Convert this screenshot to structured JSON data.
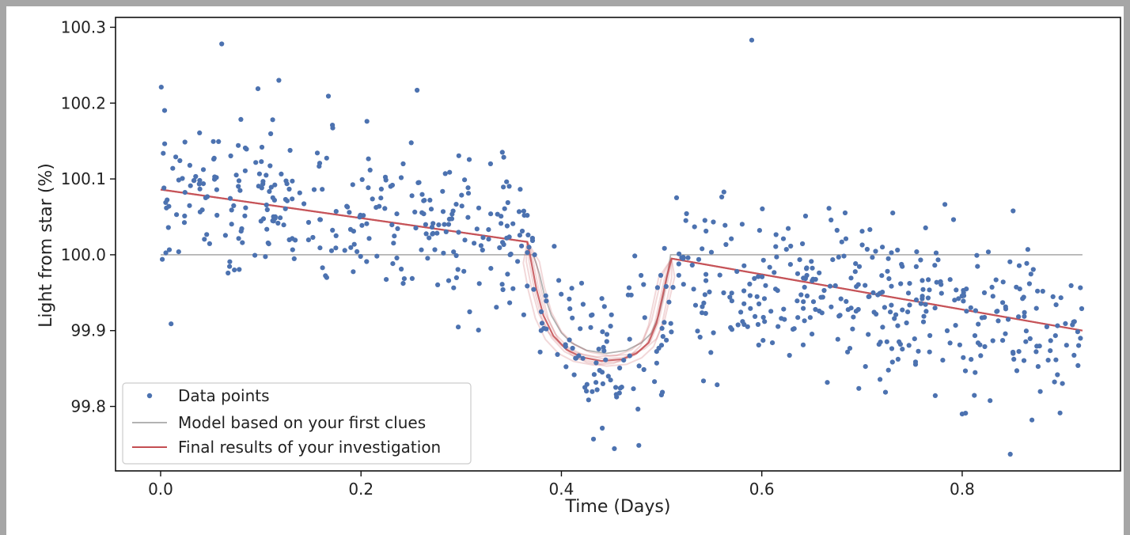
{
  "chart_data": {
    "type": "scatter",
    "title": "",
    "xlabel": "Time (Days)",
    "ylabel": "Light from star (%)",
    "xlim": [
      -0.045,
      0.958
    ],
    "ylim": [
      99.715,
      100.313
    ],
    "xticks": [
      0.0,
      0.2,
      0.4,
      0.6,
      0.8
    ],
    "xtick_labels": [
      "0.0",
      "0.2",
      "0.4",
      "0.6",
      "0.8"
    ],
    "yticks": [
      99.8,
      99.9,
      100.0,
      100.1,
      100.2,
      100.3
    ],
    "ytick_labels": [
      "99.8",
      "99.9",
      "100.0",
      "100.1",
      "100.2",
      "100.3"
    ],
    "grid": false,
    "legend_position": "lower-left",
    "legend": [
      {
        "label": "Data points",
        "kind": "marker",
        "color": "#4c72b0"
      },
      {
        "label": "Model based on your first clues",
        "kind": "line",
        "color": "#b3b3b3"
      },
      {
        "label": "Final results of your investigation",
        "kind": "line",
        "color": "#c44e52"
      }
    ],
    "data_points": {
      "name": "Data points",
      "color": "#4c72b0",
      "x_start": 0.0,
      "x_end": 0.92,
      "n_points": 780,
      "notes_on_shape": "scatter around baseline; dip between transit ingress and egress",
      "baseline_start": 100.085,
      "baseline_end": 99.9,
      "scatter_sd": 0.05,
      "transit_ingress": 0.368,
      "transit_egress": 0.51,
      "transit_depth": 0.13,
      "outliers": [
        {
          "x": 0.061,
          "y": 100.278
        },
        {
          "x": 0.118,
          "y": 100.23
        },
        {
          "x": 0.256,
          "y": 100.217
        },
        {
          "x": 0.59,
          "y": 100.283
        },
        {
          "x": 0.432,
          "y": 99.757
        },
        {
          "x": 0.848,
          "y": 99.737
        },
        {
          "x": 0.8,
          "y": 99.79
        }
      ]
    },
    "model_line": {
      "name": "Model based on your first clues",
      "color": "#b3b3b3",
      "x": [
        0.0,
        0.372,
        0.378,
        0.383,
        0.39,
        0.4,
        0.41,
        0.425,
        0.445,
        0.465,
        0.48,
        0.49,
        0.497,
        0.502,
        0.506,
        0.509,
        0.92
      ],
      "y": [
        100.0,
        100.0,
        99.975,
        99.947,
        99.92,
        99.897,
        99.884,
        99.874,
        99.87,
        99.874,
        99.884,
        99.897,
        99.92,
        99.947,
        99.975,
        100.0,
        100.0
      ]
    },
    "final_line": {
      "name": "Final results of your investigation",
      "color": "#c44e52",
      "x": [
        0.0,
        0.366,
        0.37,
        0.375,
        0.382,
        0.392,
        0.405,
        0.42,
        0.44,
        0.46,
        0.475,
        0.487,
        0.495,
        0.5,
        0.505,
        0.51,
        0.92
      ],
      "y": [
        100.086,
        100.017,
        99.99,
        99.955,
        99.92,
        99.893,
        99.875,
        99.865,
        99.86,
        99.862,
        99.87,
        99.884,
        99.91,
        99.94,
        99.97,
        99.995,
        99.9
      ]
    }
  }
}
